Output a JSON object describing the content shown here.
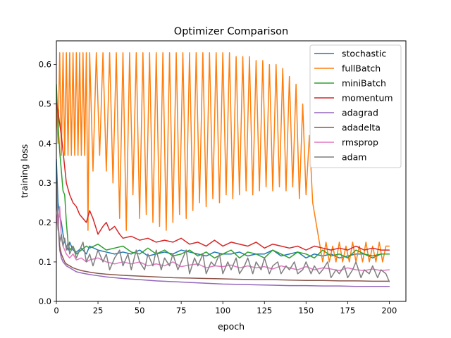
{
  "chart_data": {
    "type": "line",
    "title": "Optimizer Comparison",
    "xlabel": "epoch",
    "ylabel": "training loss",
    "xlim": [
      0,
      210
    ],
    "ylim": [
      0,
      0.66
    ],
    "xticks": [
      0,
      25,
      50,
      75,
      100,
      125,
      150,
      175,
      200
    ],
    "yticks": [
      0.0,
      0.1,
      0.2,
      0.3,
      0.4,
      0.5,
      0.6
    ],
    "xtick_labels": [
      "0",
      "25",
      "50",
      "75",
      "100",
      "125",
      "150",
      "175",
      "200"
    ],
    "ytick_labels": [
      "0.0",
      "0.1",
      "0.2",
      "0.3",
      "0.4",
      "0.5",
      "0.6"
    ],
    "grid": false,
    "legend_position": "top-right",
    "series": [
      {
        "name": "stochastic",
        "color": "#1f77b4",
        "x": [
          0,
          1,
          2,
          3,
          4,
          5,
          6,
          7,
          8,
          10,
          12,
          15,
          18,
          20,
          25,
          30,
          35,
          40,
          45,
          50,
          55,
          60,
          65,
          70,
          75,
          80,
          85,
          90,
          95,
          100,
          105,
          110,
          115,
          120,
          125,
          130,
          135,
          140,
          145,
          150,
          155,
          160,
          165,
          170,
          175,
          180,
          185,
          190,
          195,
          200
        ],
        "values": [
          0.36,
          0.25,
          0.22,
          0.2,
          0.17,
          0.15,
          0.14,
          0.13,
          0.15,
          0.13,
          0.125,
          0.135,
          0.12,
          0.14,
          0.13,
          0.125,
          0.12,
          0.125,
          0.12,
          0.13,
          0.115,
          0.12,
          0.125,
          0.12,
          0.13,
          0.125,
          0.12,
          0.115,
          0.125,
          0.12,
          0.12,
          0.125,
          0.115,
          0.12,
          0.12,
          0.13,
          0.115,
          0.12,
          0.125,
          0.11,
          0.12,
          0.115,
          0.12,
          0.11,
          0.115,
          0.12,
          0.12,
          0.11,
          0.12,
          0.12
        ]
      },
      {
        "name": "fullBatch",
        "color": "#ff7f0e",
        "x": [
          0,
          1,
          2,
          3,
          4,
          5,
          6,
          7,
          8,
          9,
          10,
          11,
          12,
          13,
          14,
          15,
          16,
          17,
          18,
          19,
          20,
          22,
          24,
          26,
          28,
          30,
          32,
          34,
          36,
          38,
          40,
          42,
          44,
          46,
          48,
          50,
          52,
          54,
          56,
          58,
          60,
          62,
          64,
          66,
          68,
          70,
          72,
          74,
          76,
          78,
          80,
          82,
          84,
          86,
          88,
          90,
          92,
          94,
          96,
          98,
          100,
          102,
          104,
          106,
          108,
          110,
          112,
          114,
          116,
          118,
          120,
          122,
          124,
          126,
          128,
          130,
          132,
          134,
          136,
          138,
          140,
          142,
          144,
          146,
          148,
          150,
          152,
          154,
          156,
          158,
          160,
          162,
          164,
          166,
          168,
          170,
          172,
          174,
          176,
          178,
          180,
          182,
          184,
          186,
          188,
          190,
          192,
          194,
          196,
          198,
          200
        ],
        "values": [
          0.5,
          0.4,
          0.63,
          0.37,
          0.63,
          0.37,
          0.63,
          0.37,
          0.63,
          0.37,
          0.63,
          0.37,
          0.63,
          0.37,
          0.63,
          0.37,
          0.63,
          0.37,
          0.63,
          0.18,
          0.63,
          0.33,
          0.63,
          0.37,
          0.63,
          0.33,
          0.63,
          0.3,
          0.63,
          0.21,
          0.63,
          0.18,
          0.63,
          0.27,
          0.63,
          0.21,
          0.63,
          0.22,
          0.63,
          0.2,
          0.63,
          0.19,
          0.63,
          0.18,
          0.63,
          0.2,
          0.63,
          0.22,
          0.63,
          0.21,
          0.63,
          0.23,
          0.63,
          0.25,
          0.63,
          0.24,
          0.63,
          0.26,
          0.63,
          0.25,
          0.63,
          0.27,
          0.63,
          0.26,
          0.62,
          0.27,
          0.62,
          0.28,
          0.62,
          0.27,
          0.61,
          0.28,
          0.61,
          0.29,
          0.6,
          0.28,
          0.6,
          0.29,
          0.59,
          0.28,
          0.57,
          0.29,
          0.55,
          0.26,
          0.5,
          0.27,
          0.42,
          0.25,
          0.2,
          0.15,
          0.1,
          0.15,
          0.1,
          0.14,
          0.1,
          0.15,
          0.1,
          0.14,
          0.1,
          0.15,
          0.1,
          0.14,
          0.1,
          0.15,
          0.1,
          0.14,
          0.1,
          0.15,
          0.1,
          0.14,
          0.14
        ]
      },
      {
        "name": "miniBatch",
        "color": "#2ca02c",
        "x": [
          0,
          1,
          2,
          3,
          4,
          5,
          6,
          7,
          8,
          10,
          12,
          15,
          18,
          20,
          25,
          30,
          35,
          40,
          45,
          50,
          55,
          60,
          65,
          70,
          75,
          80,
          85,
          90,
          95,
          100,
          105,
          110,
          115,
          120,
          125,
          130,
          135,
          140,
          145,
          150,
          155,
          160,
          165,
          170,
          175,
          180,
          185,
          190,
          195,
          200
        ],
        "values": [
          0.55,
          0.45,
          0.38,
          0.33,
          0.28,
          0.27,
          0.2,
          0.15,
          0.13,
          0.14,
          0.12,
          0.13,
          0.14,
          0.135,
          0.145,
          0.13,
          0.135,
          0.14,
          0.125,
          0.12,
          0.135,
          0.12,
          0.13,
          0.115,
          0.12,
          0.13,
          0.115,
          0.125,
          0.11,
          0.12,
          0.13,
          0.11,
          0.125,
          0.12,
          0.11,
          0.13,
          0.12,
          0.11,
          0.125,
          0.12,
          0.11,
          0.13,
          0.115,
          0.12,
          0.11,
          0.13,
          0.12,
          0.115,
          0.12,
          0.12
        ]
      },
      {
        "name": "momentum",
        "color": "#d62728",
        "x": [
          0,
          1,
          2,
          3,
          4,
          5,
          6,
          8,
          10,
          12,
          14,
          16,
          18,
          20,
          22,
          25,
          28,
          30,
          32,
          35,
          38,
          40,
          45,
          50,
          55,
          60,
          65,
          70,
          75,
          80,
          85,
          90,
          95,
          100,
          105,
          110,
          115,
          120,
          125,
          130,
          135,
          140,
          145,
          150,
          155,
          160,
          165,
          170,
          175,
          180,
          185,
          190,
          195,
          200
        ],
        "values": [
          0.5,
          0.48,
          0.45,
          0.42,
          0.38,
          0.34,
          0.3,
          0.27,
          0.25,
          0.24,
          0.22,
          0.21,
          0.2,
          0.23,
          0.21,
          0.17,
          0.19,
          0.2,
          0.18,
          0.19,
          0.17,
          0.16,
          0.165,
          0.155,
          0.16,
          0.15,
          0.155,
          0.15,
          0.16,
          0.145,
          0.15,
          0.14,
          0.155,
          0.14,
          0.15,
          0.145,
          0.14,
          0.15,
          0.135,
          0.145,
          0.14,
          0.135,
          0.14,
          0.13,
          0.14,
          0.135,
          0.13,
          0.135,
          0.13,
          0.14,
          0.13,
          0.135,
          0.13,
          0.13
        ]
      },
      {
        "name": "adagrad",
        "color": "#9467bd",
        "x": [
          0,
          1,
          2,
          3,
          4,
          5,
          6,
          8,
          10,
          12,
          15,
          20,
          25,
          30,
          40,
          50,
          60,
          70,
          80,
          90,
          100,
          110,
          120,
          130,
          140,
          150,
          160,
          170,
          180,
          190,
          200
        ],
        "values": [
          0.3,
          0.2,
          0.13,
          0.11,
          0.1,
          0.095,
          0.09,
          0.085,
          0.08,
          0.075,
          0.072,
          0.068,
          0.065,
          0.062,
          0.058,
          0.055,
          0.052,
          0.05,
          0.048,
          0.046,
          0.044,
          0.043,
          0.042,
          0.041,
          0.04,
          0.04,
          0.039,
          0.039,
          0.038,
          0.038,
          0.038
        ]
      },
      {
        "name": "adadelta",
        "color": "#8c564b",
        "x": [
          0,
          1,
          2,
          3,
          4,
          5,
          6,
          8,
          10,
          12,
          15,
          20,
          25,
          30,
          40,
          50,
          60,
          70,
          80,
          90,
          100,
          110,
          120,
          130,
          140,
          150,
          160,
          170,
          180,
          190,
          200
        ],
        "values": [
          0.3,
          0.2,
          0.14,
          0.12,
          0.11,
          0.1,
          0.095,
          0.09,
          0.085,
          0.082,
          0.078,
          0.074,
          0.071,
          0.069,
          0.066,
          0.064,
          0.062,
          0.06,
          0.059,
          0.058,
          0.057,
          0.056,
          0.055,
          0.055,
          0.054,
          0.053,
          0.053,
          0.052,
          0.052,
          0.051,
          0.051
        ]
      },
      {
        "name": "rmsprop",
        "color": "#e377c2",
        "x": [
          0,
          1,
          2,
          3,
          4,
          5,
          6,
          8,
          10,
          12,
          15,
          18,
          20,
          25,
          30,
          35,
          40,
          45,
          50,
          55,
          60,
          65,
          70,
          75,
          80,
          85,
          90,
          95,
          100,
          105,
          110,
          115,
          120,
          125,
          130,
          135,
          140,
          145,
          150,
          155,
          160,
          165,
          170,
          175,
          180,
          185,
          190,
          195,
          200
        ],
        "values": [
          0.22,
          0.18,
          0.24,
          0.16,
          0.14,
          0.13,
          0.12,
          0.11,
          0.12,
          0.105,
          0.11,
          0.1,
          0.105,
          0.11,
          0.1,
          0.095,
          0.1,
          0.095,
          0.1,
          0.09,
          0.095,
          0.09,
          0.1,
          0.088,
          0.092,
          0.095,
          0.085,
          0.09,
          0.088,
          0.092,
          0.085,
          0.09,
          0.085,
          0.088,
          0.082,
          0.09,
          0.085,
          0.08,
          0.088,
          0.08,
          0.085,
          0.082,
          0.078,
          0.085,
          0.08,
          0.078,
          0.082,
          0.078,
          0.08
        ]
      },
      {
        "name": "adam",
        "color": "#7f7f7f",
        "x": [
          0,
          1,
          2,
          3,
          4,
          5,
          6,
          7,
          8,
          10,
          12,
          14,
          16,
          18,
          20,
          22,
          25,
          28,
          30,
          32,
          35,
          38,
          40,
          43,
          45,
          48,
          50,
          53,
          55,
          58,
          60,
          63,
          65,
          68,
          70,
          73,
          75,
          78,
          80,
          83,
          85,
          88,
          90,
          93,
          95,
          98,
          100,
          103,
          105,
          108,
          110,
          113,
          115,
          118,
          120,
          123,
          125,
          128,
          130,
          133,
          135,
          138,
          140,
          143,
          145,
          148,
          150,
          153,
          155,
          158,
          160,
          163,
          165,
          168,
          170,
          173,
          175,
          178,
          180,
          183,
          185,
          188,
          190,
          193,
          195,
          198,
          200
        ],
        "values": [
          0.3,
          0.2,
          0.15,
          0.17,
          0.14,
          0.16,
          0.13,
          0.15,
          0.12,
          0.14,
          0.11,
          0.13,
          0.15,
          0.1,
          0.12,
          0.09,
          0.13,
          0.1,
          0.12,
          0.08,
          0.11,
          0.13,
          0.09,
          0.12,
          0.08,
          0.13,
          0.1,
          0.08,
          0.12,
          0.09,
          0.13,
          0.08,
          0.11,
          0.09,
          0.12,
          0.08,
          0.1,
          0.13,
          0.07,
          0.11,
          0.09,
          0.12,
          0.07,
          0.1,
          0.09,
          0.12,
          0.07,
          0.1,
          0.08,
          0.11,
          0.07,
          0.09,
          0.11,
          0.07,
          0.1,
          0.08,
          0.11,
          0.07,
          0.09,
          0.1,
          0.07,
          0.09,
          0.08,
          0.1,
          0.07,
          0.08,
          0.1,
          0.07,
          0.09,
          0.07,
          0.08,
          0.1,
          0.06,
          0.08,
          0.07,
          0.09,
          0.06,
          0.08,
          0.1,
          0.06,
          0.08,
          0.07,
          0.09,
          0.06,
          0.08,
          0.07,
          0.05
        ]
      }
    ]
  }
}
